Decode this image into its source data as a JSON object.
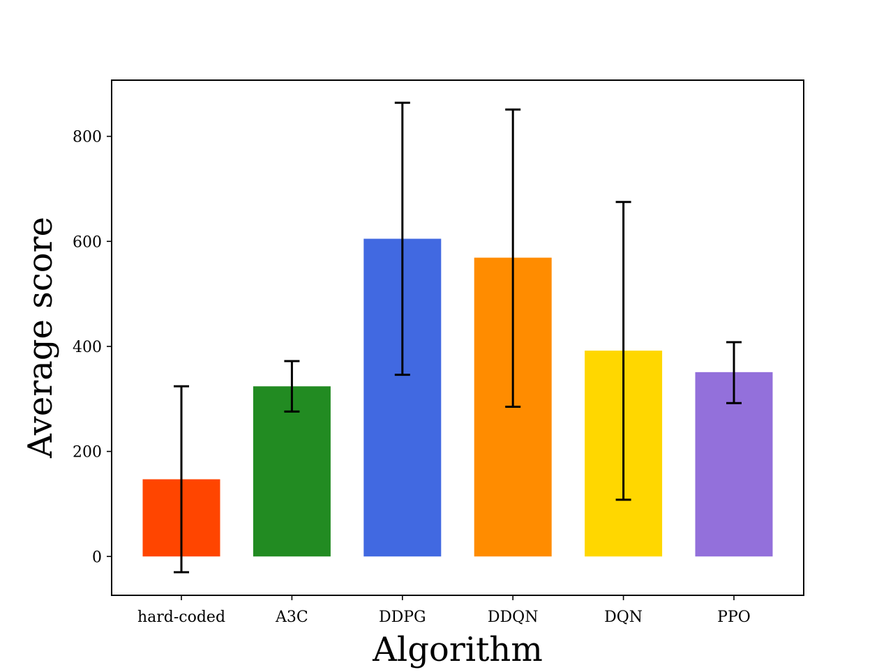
{
  "chart_data": {
    "type": "bar",
    "xlabel": "Algorithm",
    "ylabel": "Average score",
    "categories": [
      "hard-coded",
      "A3C",
      "DDPG",
      "DDQN",
      "DQN",
      "PPO"
    ],
    "values": [
      147,
      324,
      605,
      569,
      392,
      351
    ],
    "error_low": [
      -30,
      276,
      346,
      285,
      108,
      292
    ],
    "error_high": [
      324,
      372,
      864,
      851,
      675,
      408
    ],
    "colors": [
      "#ff4500",
      "#228b22",
      "#4169e1",
      "#ff8c00",
      "#ffd700",
      "#9370db"
    ],
    "ylim": [
      -74,
      907
    ],
    "yticks": [
      {
        "value": 0,
        "label": "0"
      },
      {
        "value": 200,
        "label": "200"
      },
      {
        "value": 400,
        "label": "400"
      },
      {
        "value": 600,
        "label": "600"
      },
      {
        "value": 800,
        "label": "800"
      }
    ],
    "grid": false
  }
}
